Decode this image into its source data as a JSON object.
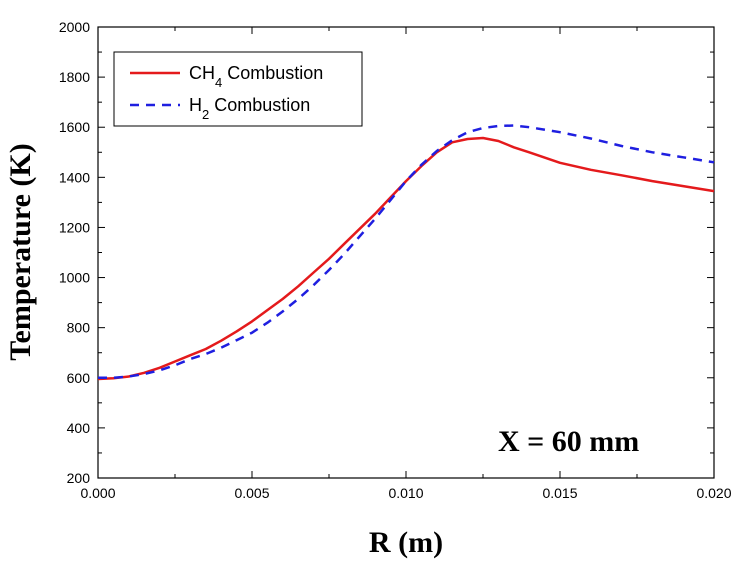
{
  "chart_data": {
    "type": "line",
    "xlabel": "R (m)",
    "ylabel": "Temperature (K)",
    "xlim": [
      0.0,
      0.02
    ],
    "ylim": [
      200,
      2000
    ],
    "xticks": [
      "0.000",
      "0.005",
      "0.010",
      "0.015",
      "0.020"
    ],
    "yticks": [
      "200",
      "400",
      "600",
      "800",
      "1000",
      "1200",
      "1400",
      "1600",
      "1800",
      "2000"
    ],
    "xtick_values": [
      0.0,
      0.005,
      0.01,
      0.015,
      0.02
    ],
    "ytick_values": [
      200,
      400,
      600,
      800,
      1000,
      1200,
      1400,
      1600,
      1800,
      2000
    ],
    "grid": false,
    "legend_position": "top-left",
    "annotation": "X = 60 mm",
    "series": [
      {
        "name": "CH4 Combustion",
        "name_base": "CH",
        "name_sub": "4",
        "name_rest": " Combustion",
        "color": "#e41a1c",
        "style": "solid",
        "x": [
          0.0,
          0.0005,
          0.001,
          0.0015,
          0.002,
          0.0025,
          0.003,
          0.0035,
          0.004,
          0.0045,
          0.005,
          0.0055,
          0.006,
          0.0065,
          0.007,
          0.0075,
          0.008,
          0.0085,
          0.009,
          0.0095,
          0.01,
          0.0105,
          0.011,
          0.0115,
          0.012,
          0.0125,
          0.013,
          0.0135,
          0.014,
          0.015,
          0.016,
          0.017,
          0.018,
          0.019,
          0.02
        ],
        "y": [
          595,
          598,
          605,
          620,
          640,
          665,
          690,
          715,
          748,
          785,
          825,
          870,
          915,
          965,
          1020,
          1075,
          1135,
          1195,
          1255,
          1320,
          1385,
          1445,
          1500,
          1540,
          1553,
          1557,
          1545,
          1520,
          1500,
          1458,
          1430,
          1408,
          1385,
          1365,
          1345
        ]
      },
      {
        "name": "H2 Combustion",
        "name_base": "H",
        "name_sub": "2",
        "name_rest": " Combustion",
        "color": "#1f1fe0",
        "style": "dashed",
        "x": [
          0.0,
          0.0005,
          0.001,
          0.0015,
          0.002,
          0.0025,
          0.003,
          0.0035,
          0.004,
          0.0045,
          0.005,
          0.0055,
          0.006,
          0.0065,
          0.007,
          0.0075,
          0.008,
          0.0085,
          0.009,
          0.0095,
          0.01,
          0.0105,
          0.011,
          0.0115,
          0.012,
          0.0125,
          0.013,
          0.0135,
          0.014,
          0.015,
          0.016,
          0.017,
          0.018,
          0.019,
          0.02
        ],
        "y": [
          600,
          600,
          605,
          615,
          630,
          650,
          675,
          695,
          720,
          750,
          780,
          820,
          865,
          915,
          970,
          1030,
          1095,
          1165,
          1235,
          1310,
          1385,
          1450,
          1505,
          1548,
          1580,
          1597,
          1605,
          1607,
          1600,
          1580,
          1555,
          1525,
          1500,
          1480,
          1460
        ]
      }
    ]
  }
}
